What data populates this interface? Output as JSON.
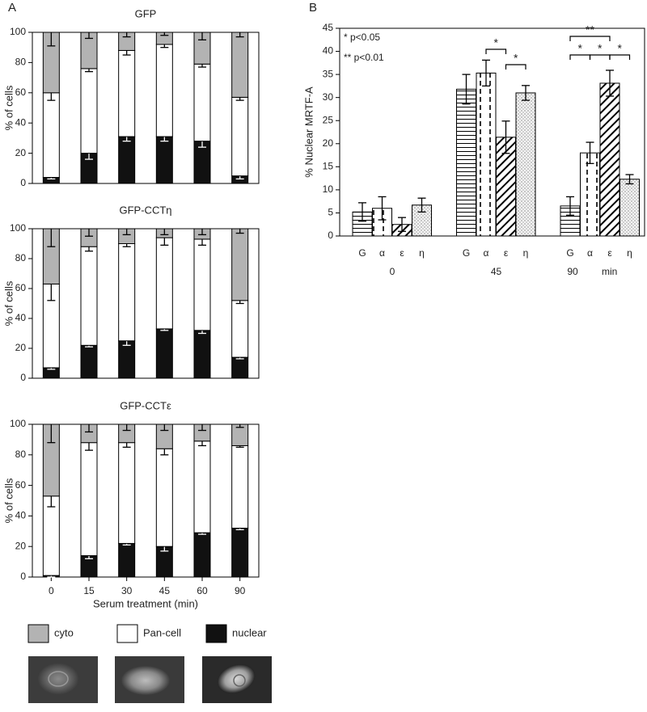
{
  "chart_data": [
    {
      "type": "bar",
      "stacked": true,
      "panel_label": "A",
      "title": "GFP",
      "y_label": "% of cells",
      "categories": [
        null,
        null,
        null,
        null,
        null,
        null
      ],
      "ylim": [
        0,
        100
      ],
      "yticks": [
        0,
        20,
        40,
        60,
        80,
        100
      ],
      "series": [
        {
          "name": "nuclear",
          "color": "#111111",
          "values": [
            4,
            20,
            31,
            31,
            28,
            5
          ],
          "errors": [
            1,
            4,
            3,
            3,
            4,
            2
          ]
        },
        {
          "name": "Pan-cell",
          "color": "#ffffff",
          "values": [
            56,
            56,
            57,
            61,
            51,
            52
          ],
          "errors": [
            5,
            2,
            3,
            2,
            2,
            2
          ]
        },
        {
          "name": "cyto",
          "color": "#b3b3b3",
          "values": [
            40,
            24,
            12,
            8,
            21,
            43
          ],
          "errors": [
            9,
            4,
            3,
            2,
            5,
            3
          ]
        }
      ]
    },
    {
      "type": "bar",
      "stacked": true,
      "title": "GFP-CCTη",
      "y_label": "% of cells",
      "categories": [
        null,
        null,
        null,
        null,
        null,
        null
      ],
      "ylim": [
        0,
        100
      ],
      "yticks": [
        0,
        20,
        40,
        60,
        80,
        100
      ],
      "series": [
        {
          "color": "#111111",
          "values": [
            7,
            22,
            25,
            33,
            32,
            14
          ],
          "errors": [
            1,
            1,
            3,
            1,
            2,
            1
          ]
        },
        {
          "color": "#ffffff",
          "values": [
            56,
            66,
            65,
            61,
            61,
            38
          ],
          "errors": [
            11,
            3,
            2,
            5,
            4,
            2
          ]
        },
        {
          "color": "#b3b3b3",
          "values": [
            37,
            12,
            10,
            6,
            7,
            48
          ],
          "errors": [
            12,
            5,
            4,
            4,
            4,
            3
          ]
        }
      ]
    },
    {
      "type": "bar",
      "stacked": true,
      "title": "GFP-CCTε",
      "y_label": "% of cells",
      "x_label": "Serum treatment (min)",
      "categories": [
        "0",
        "15",
        "30",
        "45",
        "60",
        "90"
      ],
      "ylim": [
        0,
        100
      ],
      "yticks": [
        0,
        20,
        40,
        60,
        80,
        100
      ],
      "series": [
        {
          "color": "#111111",
          "values": [
            1,
            14,
            22,
            20,
            29,
            32
          ],
          "errors": [
            1,
            2,
            1,
            3,
            1,
            1
          ]
        },
        {
          "color": "#ffffff",
          "values": [
            52,
            74,
            66,
            64,
            60,
            54
          ],
          "errors": [
            7,
            5,
            3,
            4,
            3,
            1
          ]
        },
        {
          "color": "#b3b3b3",
          "values": [
            47,
            12,
            12,
            16,
            11,
            14
          ],
          "errors": [
            12,
            5,
            4,
            4,
            4,
            2
          ]
        }
      ]
    },
    {
      "type": "bar",
      "stacked": false,
      "panel_label": "B",
      "y_label": "% Nuclear MRTF-A",
      "categories": [
        "0",
        "45",
        "90"
      ],
      "x_unit": "min",
      "ylim": [
        0,
        45
      ],
      "yticks": [
        0,
        5,
        10,
        15,
        20,
        25,
        30,
        35,
        40,
        45
      ],
      "annotations": [
        "*  p<0.05",
        "** p<0.01"
      ],
      "brackets": [
        {
          "label": "*"
        },
        {
          "label": "*"
        },
        {
          "label": "**"
        },
        {
          "label": "*"
        },
        {
          "label": "*"
        },
        {
          "label": "*"
        }
      ],
      "series": [
        {
          "name": "G",
          "pattern": "horizontal",
          "values": [
            5.2,
            31.8,
            6.5
          ],
          "errors": [
            2,
            3.2,
            2
          ]
        },
        {
          "name": "α",
          "pattern": "dashed",
          "values": [
            6,
            35.3,
            18
          ],
          "errors": [
            2.5,
            2.8,
            2.3
          ]
        },
        {
          "name": "ε",
          "pattern": "diagonal",
          "values": [
            2.5,
            21.4,
            33.1
          ],
          "errors": [
            1.5,
            3.5,
            2.8
          ]
        },
        {
          "name": "η",
          "pattern": "dotted",
          "values": [
            6.7,
            31,
            12.3
          ],
          "errors": [
            1.5,
            1.6,
            1
          ]
        }
      ]
    }
  ]
}
